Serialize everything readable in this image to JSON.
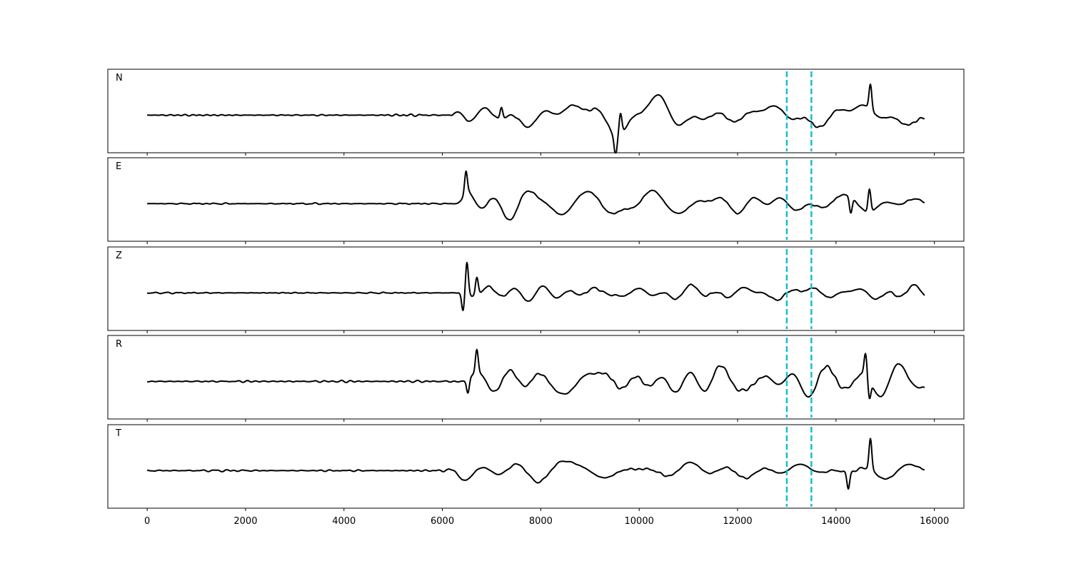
{
  "chart_data": {
    "type": "line",
    "layout": "stacked-panels",
    "xlim": [
      -800,
      16600
    ],
    "xticks": [
      0,
      2000,
      4000,
      6000,
      8000,
      10000,
      12000,
      14000,
      16000
    ],
    "x_range": [
      0,
      15800
    ],
    "markers_x": [
      13000,
      13500
    ],
    "marker_color": "#17becf",
    "trace_color": "#000000",
    "panels": [
      {
        "label": "N",
        "onset": 6200,
        "noise_amp": 0.05,
        "sig_amp": 0.45,
        "seed": 11,
        "spikes": [
          [
            14700,
            0.6
          ],
          [
            9620,
            0.5
          ],
          [
            7200,
            0.3
          ],
          [
            9520,
            -0.45
          ]
        ]
      },
      {
        "label": "E",
        "onset": 6250,
        "noise_amp": 0.05,
        "sig_amp": 0.42,
        "seed": 23,
        "spikes": [
          [
            6480,
            0.55
          ],
          [
            14680,
            0.55
          ],
          [
            14300,
            -0.4
          ]
        ]
      },
      {
        "label": "Z",
        "onset": 6300,
        "noise_amp": 0.05,
        "sig_amp": 0.28,
        "seed": 37,
        "spikes": [
          [
            6500,
            0.75
          ],
          [
            6420,
            -0.45
          ],
          [
            6700,
            0.4
          ]
        ]
      },
      {
        "label": "R",
        "onset": 6200,
        "noise_amp": 0.05,
        "sig_amp": 0.42,
        "seed": 41,
        "spikes": [
          [
            6700,
            0.55
          ],
          [
            14600,
            0.55
          ],
          [
            14680,
            -0.45
          ],
          [
            6520,
            -0.35
          ]
        ]
      },
      {
        "label": "T",
        "onset": 6100,
        "noise_amp": 0.05,
        "sig_amp": 0.42,
        "seed": 53,
        "spikes": [
          [
            14700,
            0.75
          ],
          [
            14250,
            -0.4
          ]
        ]
      }
    ]
  }
}
